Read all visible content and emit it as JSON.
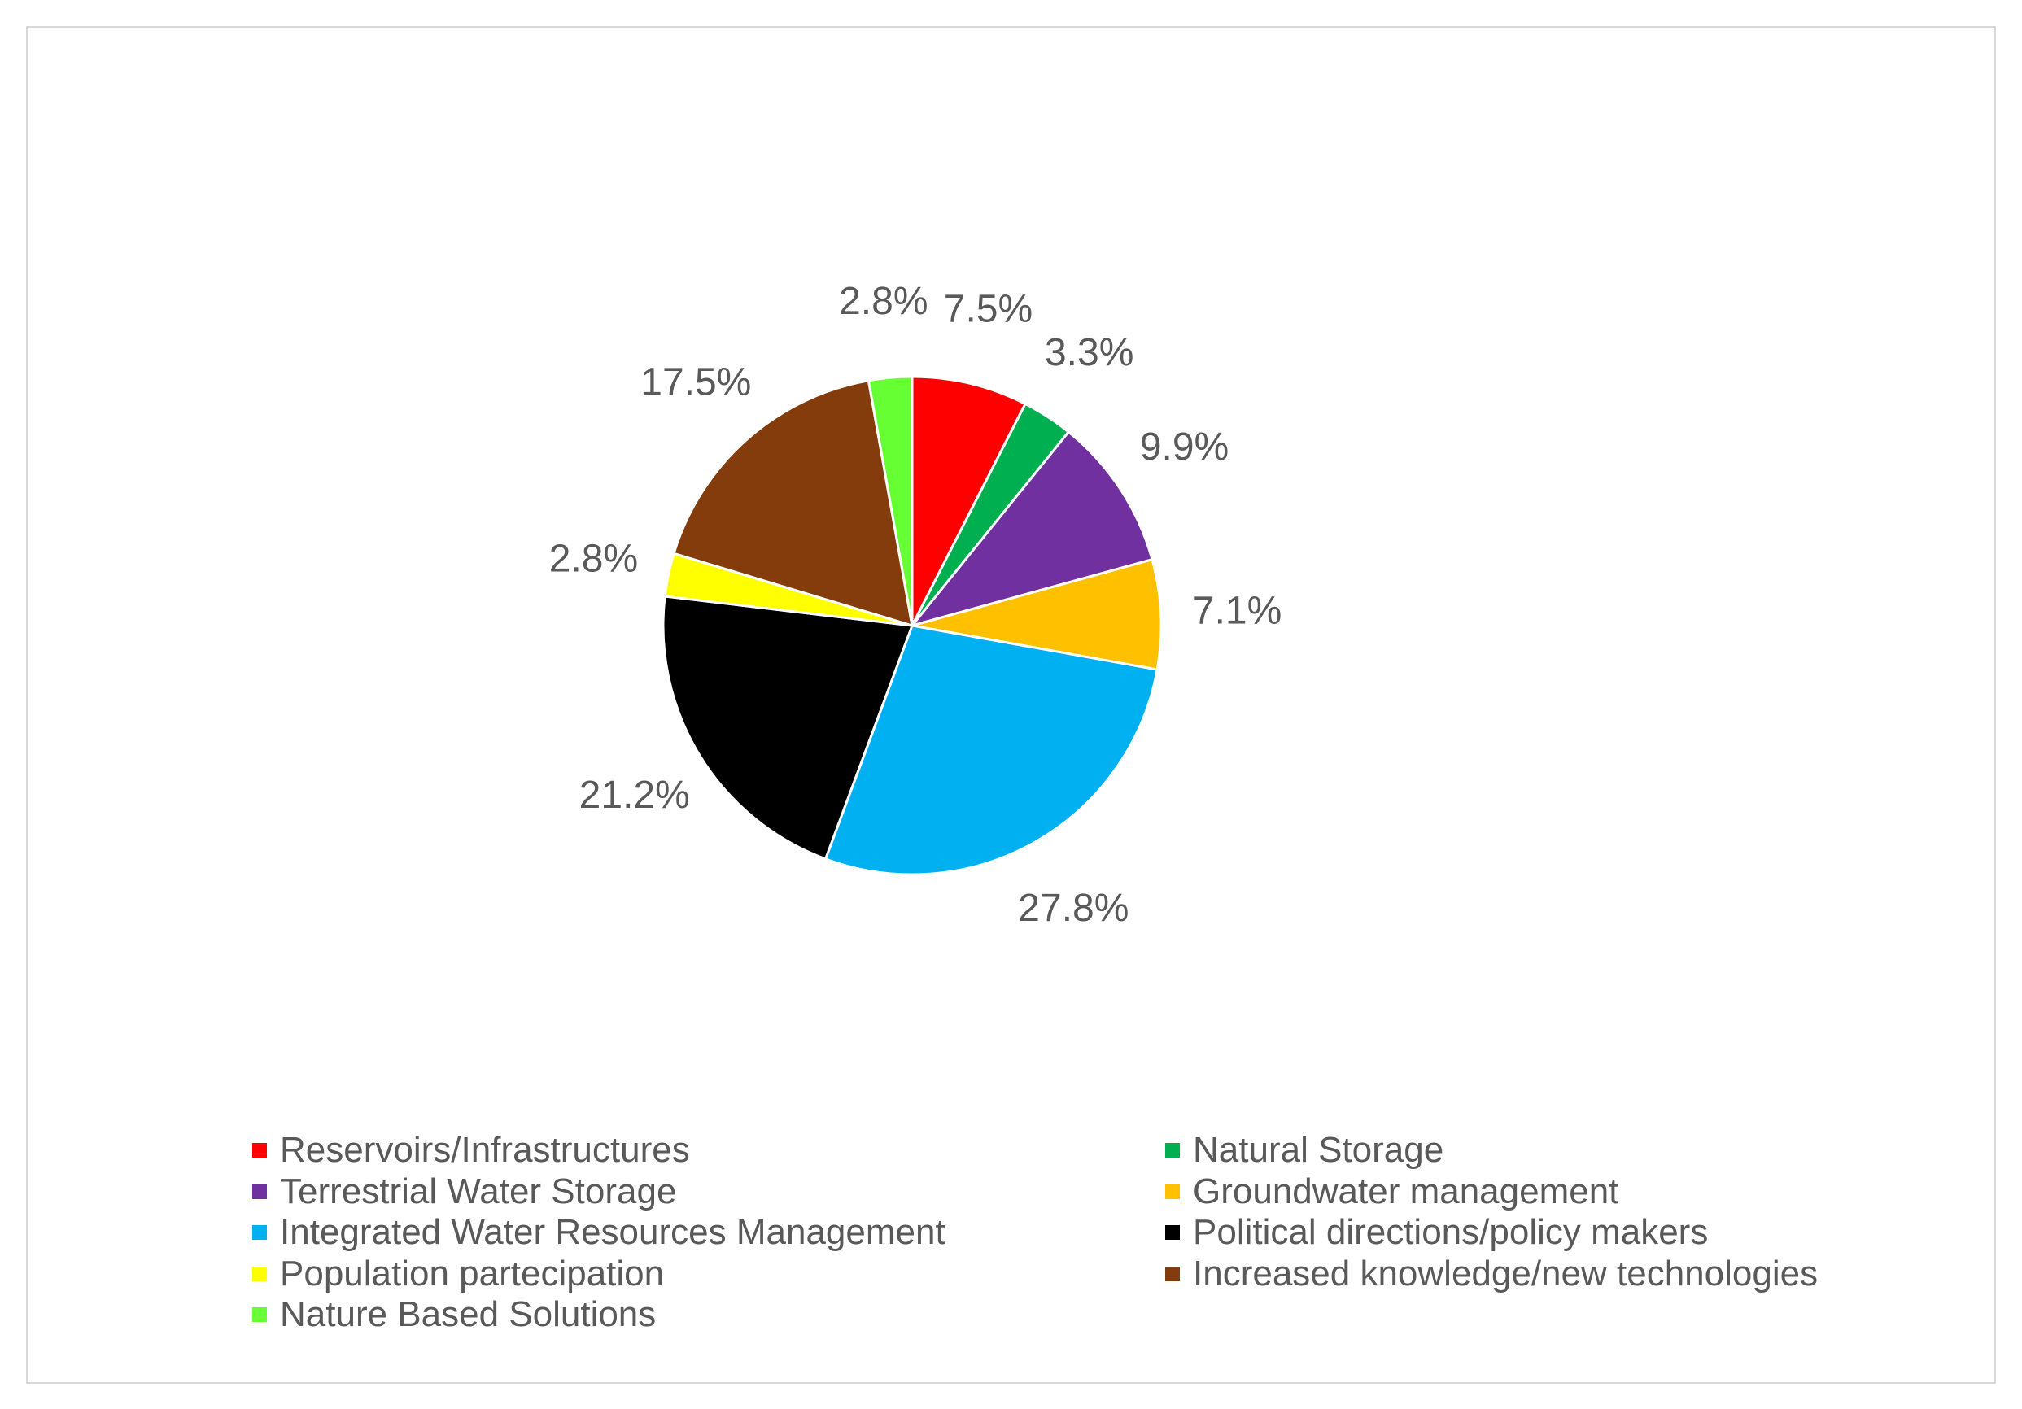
{
  "chart_data": {
    "type": "pie",
    "title": "",
    "slices": [
      {
        "name": "Reservoirs/Infrastructures",
        "value": 7.5,
        "label": "7.5%",
        "color": "#ff0000"
      },
      {
        "name": "Natural Storage",
        "value": 3.3,
        "label": "3.3%",
        "color": "#00b050"
      },
      {
        "name": "Terrestrial Water Storage",
        "value": 9.9,
        "label": "9.9%",
        "color": "#7030a0"
      },
      {
        "name": "Groundwater management",
        "value": 7.1,
        "label": "7.1%",
        "color": "#ffc000"
      },
      {
        "name": "Integrated Water Resources Management",
        "value": 27.8,
        "label": "27.8%",
        "color": "#00b0f0"
      },
      {
        "name": "Political directions/policy makers",
        "value": 21.2,
        "label": "21.2%",
        "color": "#000000"
      },
      {
        "name": "Population partecipation",
        "value": 2.8,
        "label": "2.8%",
        "color": "#ffff00"
      },
      {
        "name": "Increased knowledge/new technologies",
        "value": 17.5,
        "label": "17.5%",
        "color": "#843c0c"
      },
      {
        "name": "Nature Based Solutions",
        "value": 2.8,
        "label": "2.8%",
        "color": "#66ff33"
      }
    ],
    "legend_position": "bottom",
    "legend_order": [
      "Reservoirs/Infrastructures",
      "Natural Storage",
      "Terrestrial Water Storage",
      "Groundwater management",
      "Integrated Water Resources Management",
      "Political directions/policy makers",
      "Population partecipation",
      "Increased knowledge/new technologies",
      "Nature Based Solutions"
    ]
  }
}
